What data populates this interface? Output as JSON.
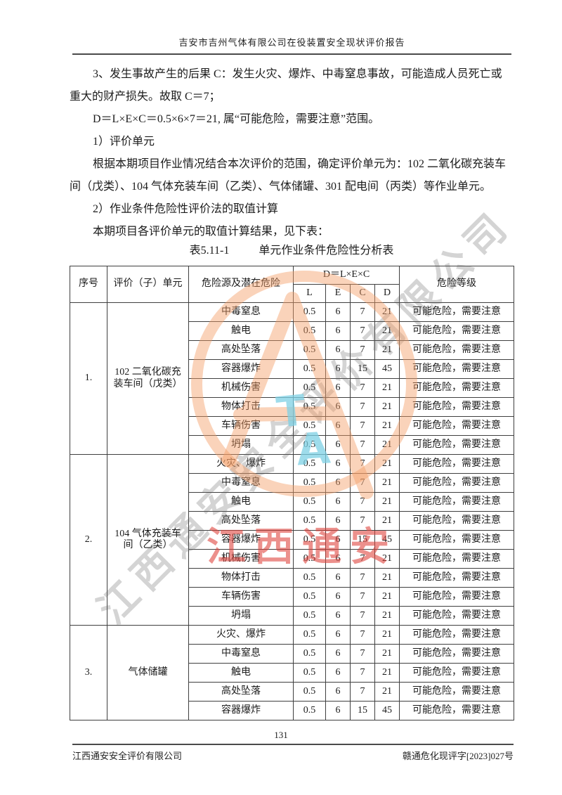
{
  "page_header": {
    "title": "吉安市吉州气体有限公司在役装置安全现状评价报告"
  },
  "body": {
    "lines": [
      {
        "text": "3、发生事故产生的后果 C：发生火灾、爆炸、中毒窒息事故，可能造成人员死亡或",
        "indent": true
      },
      {
        "text": "重大的财产损失。故取 C＝7；",
        "indent": false
      },
      {
        "text": "D＝L×E×C＝0.5×6×7＝21, 属“可能危险，需要注意”范围。",
        "indent": true
      },
      {
        "text": "1）评价单元",
        "indent": true
      },
      {
        "text": "根据本期项目作业情况结合本次评价的范围，确定评价单元为：102 二氧化碳充装车",
        "indent": true
      },
      {
        "text": "间（戊类）、104 气体充装车间（乙类）、气体储罐、301 配电间（丙类）等作业单元。",
        "indent": false
      },
      {
        "text": "2）作业条件危险性评价法的取值计算",
        "indent": true
      },
      {
        "text": "本期项目各评价单元的取值计算结果，见下表：",
        "indent": true
      }
    ]
  },
  "table": {
    "caption_no": "表5.11-1",
    "caption_title": "单元作业条件危险性分析表",
    "headers": {
      "no": "序号",
      "unit": "评价（子）单元",
      "hazard": "危险源及潜在危险",
      "formula": "D＝L×E×C",
      "l": "L",
      "e": "E",
      "c": "C",
      "d": "D",
      "level": "危险等级"
    },
    "groups": [
      {
        "no": "1.",
        "unit_lines": [
          "102 二氧化碳充",
          "装车间（戊类）"
        ],
        "rows": [
          {
            "hazard": "中毒窒息",
            "l": "0.5",
            "e": "6",
            "c": "7",
            "d": "21",
            "level": "可能危险，需要注意"
          },
          {
            "hazard": "触电",
            "l": "0.5",
            "e": "6",
            "c": "7",
            "d": "21",
            "level": "可能危险，需要注意"
          },
          {
            "hazard": "高处坠落",
            "l": "0.5",
            "e": "6",
            "c": "7",
            "d": "21",
            "level": "可能危险，需要注意"
          },
          {
            "hazard": "容器爆炸",
            "l": "0.5",
            "e": "6",
            "c": "15",
            "d": "45",
            "level": "可能危险，需要注意"
          },
          {
            "hazard": "机械伤害",
            "l": "0.5",
            "e": "6",
            "c": "7",
            "d": "21",
            "level": "可能危险，需要注意"
          },
          {
            "hazard": "物体打击",
            "l": "0.5",
            "e": "6",
            "c": "7",
            "d": "21",
            "level": "可能危险，需要注意"
          },
          {
            "hazard": "车辆伤害",
            "l": "0.5",
            "e": "6",
            "c": "7",
            "d": "21",
            "level": "可能危险，需要注意"
          },
          {
            "hazard": "坍塌",
            "l": "0.5",
            "e": "6",
            "c": "7",
            "d": "21",
            "level": "可能危险，需要注意"
          }
        ]
      },
      {
        "no": "2.",
        "unit_lines": [
          "104 气体充装车",
          "间（乙类）"
        ],
        "rows": [
          {
            "hazard": "火灾、爆炸",
            "l": "0.5",
            "e": "6",
            "c": "7",
            "d": "21",
            "level": "可能危险，需要注意"
          },
          {
            "hazard": "中毒窒息",
            "l": "0.5",
            "e": "6",
            "c": "7",
            "d": "21",
            "level": "可能危险，需要注意"
          },
          {
            "hazard": "触电",
            "l": "0.5",
            "e": "6",
            "c": "7",
            "d": "21",
            "level": "可能危险，需要注意"
          },
          {
            "hazard": "高处坠落",
            "l": "0.5",
            "e": "6",
            "c": "7",
            "d": "21",
            "level": "可能危险，需要注意"
          },
          {
            "hazard": "容器爆炸",
            "l": "0.5",
            "e": "6",
            "c": "15",
            "d": "45",
            "level": "可能危险，需要注意"
          },
          {
            "hazard": "机械伤害",
            "l": "0.5",
            "e": "6",
            "c": "7",
            "d": "21",
            "level": "可能危险，需要注意"
          },
          {
            "hazard": "物体打击",
            "l": "0.5",
            "e": "6",
            "c": "7",
            "d": "21",
            "level": "可能危险，需要注意"
          },
          {
            "hazard": "车辆伤害",
            "l": "0.5",
            "e": "6",
            "c": "7",
            "d": "21",
            "level": "可能危险，需要注意"
          },
          {
            "hazard": "坍塌",
            "l": "0.5",
            "e": "6",
            "c": "7",
            "d": "21",
            "level": "可能危险，需要注意"
          }
        ]
      },
      {
        "no": "3.",
        "unit_lines": [
          "气体储罐"
        ],
        "rows": [
          {
            "hazard": "火灾、爆炸",
            "l": "0.5",
            "e": "6",
            "c": "7",
            "d": "21",
            "level": "可能危险，需要注意"
          },
          {
            "hazard": "中毒窒息",
            "l": "0.5",
            "e": "6",
            "c": "7",
            "d": "21",
            "level": "可能危险，需要注意"
          },
          {
            "hazard": "触电",
            "l": "0.5",
            "e": "6",
            "c": "7",
            "d": "21",
            "level": "可能危险，需要注意"
          },
          {
            "hazard": "高处坠落",
            "l": "0.5",
            "e": "6",
            "c": "7",
            "d": "21",
            "level": "可能危险，需要注意"
          },
          {
            "hazard": "容器爆炸",
            "l": "0.5",
            "e": "6",
            "c": "15",
            "d": "45",
            "level": "可能危险，需要注意"
          }
        ]
      }
    ]
  },
  "page_footer": {
    "page_number": "131",
    "left": "江西通安安全评价有限公司",
    "right": "赣通危化现评字[2023]027号"
  },
  "watermark": {
    "diagonal_text": "江西通安安全评价有限公司",
    "red_text": "江西通安",
    "logo_letters_t": "T",
    "logo_letters_a": "A",
    "colors": {
      "logo_orange": "#f39d67",
      "logo_cyan": "#7dd0e4",
      "red_stamp": "#de4038",
      "grey_text": "#5f5f5f"
    }
  }
}
